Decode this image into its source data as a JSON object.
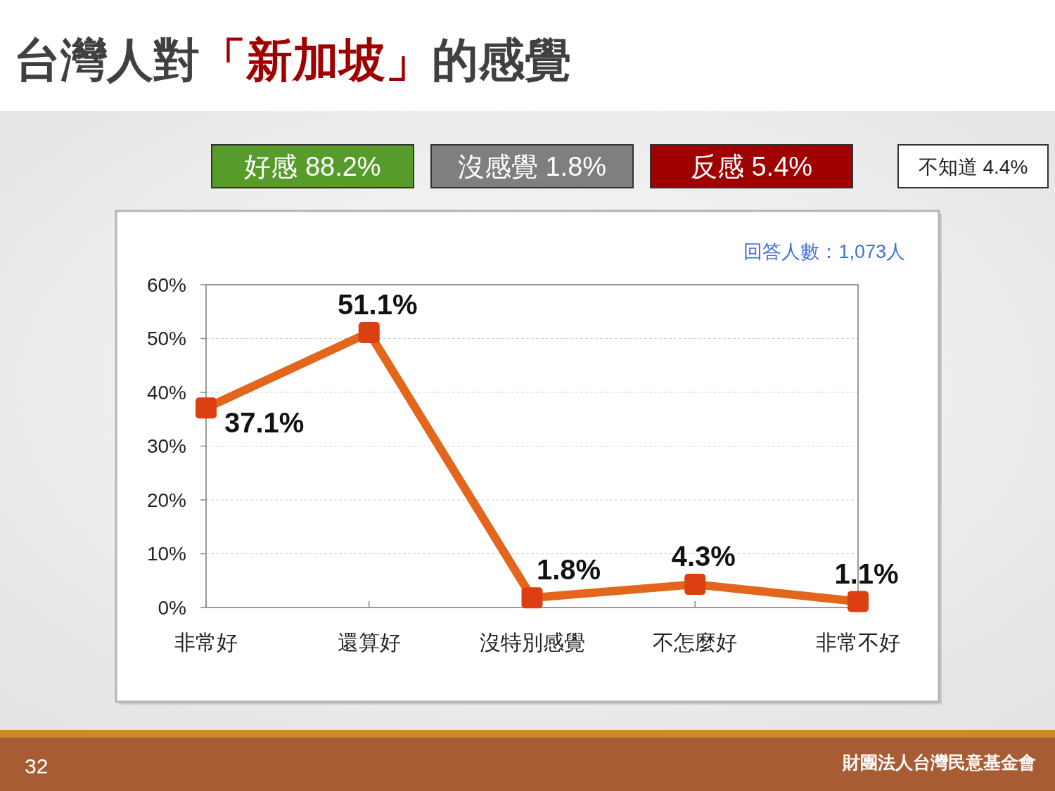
{
  "chart_data": {
    "type": "line",
    "title": "台灣人對「新加坡」的感覺",
    "categories": [
      "非常好",
      "還算好",
      "沒特別感覺",
      "不怎麼好",
      "非常不好"
    ],
    "series": [
      {
        "color": "#e2661b",
        "colors": [
          "#dc3f12",
          "#dc3f12",
          "#dc3f12",
          "#dc3f12",
          "#dc3f12"
        ],
        "values": [
          37.1,
          51.1,
          1.8,
          4.3,
          1.1
        ],
        "value_labels": [
          "37.1%",
          "51.1%",
          "1.8%",
          "4.3%",
          "1.1%"
        ]
      }
    ],
    "ylim": [
      0,
      60
    ],
    "yticks": [
      {
        "value": 0,
        "label": "0%"
      },
      {
        "value": 10,
        "label": "10%"
      },
      {
        "value": 20,
        "label": "20%"
      },
      {
        "value": 30,
        "label": "30%"
      },
      {
        "value": 40,
        "label": "40%"
      },
      {
        "value": 50,
        "label": "50%"
      },
      {
        "value": 60,
        "label": "60%"
      }
    ],
    "grid": "y",
    "marker": "square",
    "line_style": "solid",
    "annotations": [
      "好感 88.2%",
      "沒感覺 1.8%",
      "反感 5.4%",
      "不知道 4.4%",
      "回答人數：1,073人",
      "32",
      "財團法人台灣民意基金會"
    ]
  }
}
